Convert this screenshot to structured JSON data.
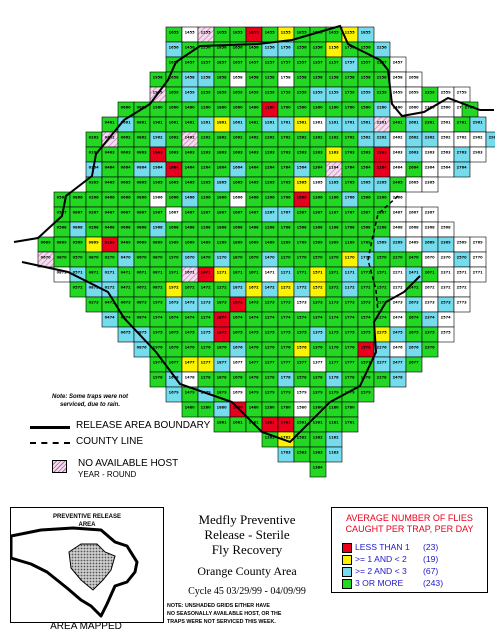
{
  "map": {
    "cell_rows": [
      {
        "y": 27,
        "x0": 166,
        "n": 2,
        "ids": [
          "1655",
          "1455"
        ]
      },
      {
        "y": 27,
        "x0": 198,
        "n": 9,
        "ids": [
          "1255",
          "1055",
          "1855",
          "1655",
          "1455",
          "1255",
          "1855",
          "1655",
          "1455"
        ]
      },
      {
        "y": 27,
        "x0": 342,
        "n": 2,
        "ids": [
          "1255",
          "1855"
        ]
      },
      {
        "y": 42,
        "x0": 166,
        "n": 14,
        "ids": [
          "1656",
          "1456",
          "1256",
          "1856",
          "1656",
          "1456",
          "1256",
          "1756",
          "1556",
          "1356",
          "1156",
          "1756",
          "1556",
          "2256"
        ]
      },
      {
        "y": 57,
        "x0": 166,
        "n": 15,
        "ids": [
          "1657",
          "1457",
          "1257",
          "1857",
          "1657",
          "1457",
          "1257",
          "1757",
          "1557",
          "1357",
          "1157",
          "1757",
          "1557",
          "2257",
          "2457"
        ]
      },
      {
        "y": 72,
        "x0": 150,
        "n": 17,
        "ids": [
          "1958",
          "1658",
          "1458",
          "1258",
          "1858",
          "1658",
          "1458",
          "1258",
          "1758",
          "1558",
          "1358",
          "1158",
          "1758",
          "1558",
          "2258",
          "2458",
          "2658"
        ]
      },
      {
        "y": 87,
        "x0": 150,
        "n": 20,
        "ids": [
          "1959",
          "1659",
          "1459",
          "1259",
          "1859",
          "1659",
          "1459",
          "1259",
          "1759",
          "1559",
          "1359",
          "1159",
          "1759",
          "1559",
          "2259",
          "2459",
          "2659",
          "2359",
          "2559",
          "2759"
        ]
      },
      {
        "y": 102,
        "x0": 118,
        "n": 22,
        "ids": [
          "0660",
          "0860",
          "1960",
          "1660",
          "1460",
          "1260",
          "1860",
          "1660",
          "1460",
          "1260",
          "1760",
          "1560",
          "1360",
          "1160",
          "1760",
          "1560",
          "2260",
          "2460",
          "2660",
          "2360",
          "2560",
          "2760"
        ]
      },
      {
        "y": 102,
        "x0": 462,
        "n": 1,
        "ids": [
          "2760"
        ]
      },
      {
        "y": 117,
        "x0": 102,
        "n": 24,
        "ids": [
          "0461",
          "0661",
          "0861",
          "1961",
          "1661",
          "1461",
          "1261",
          "1861",
          "1661",
          "1461",
          "1261",
          "1761",
          "1561",
          "1361",
          "1161",
          "1761",
          "1561",
          "2261",
          "2461",
          "2661",
          "2361",
          "2561",
          "2761",
          "2961"
        ]
      },
      {
        "y": 132,
        "x0": 86,
        "n": 25,
        "ids": [
          "0262",
          "0462",
          "0662",
          "0862",
          "1962",
          "1662",
          "1462",
          "1262",
          "1862",
          "1662",
          "1462",
          "1262",
          "1762",
          "1562",
          "1362",
          "1162",
          "1762",
          "1562",
          "2262",
          "2462",
          "2662",
          "2362",
          "2562",
          "2762",
          "2962"
        ]
      },
      {
        "y": 132,
        "x0": 486,
        "n": 1,
        "ids": [
          "2962"
        ]
      },
      {
        "y": 147,
        "x0": 86,
        "n": 25,
        "ids": [
          "0263",
          "0463",
          "0663",
          "0863",
          "1963",
          "1663",
          "1463",
          "1263",
          "1863",
          "1663",
          "1463",
          "1263",
          "1763",
          "1563",
          "1363",
          "1163",
          "1763",
          "1563",
          "2263",
          "2463",
          "2663",
          "2363",
          "2563",
          "2763",
          "2963"
        ]
      },
      {
        "y": 162,
        "x0": 86,
        "n": 24,
        "ids": [
          "0264",
          "0464",
          "0664",
          "0864",
          "1964",
          "1664",
          "1464",
          "1264",
          "1864",
          "1664",
          "1464",
          "1264",
          "1764",
          "1564",
          "1364",
          "1164",
          "1764",
          "1564",
          "2264",
          "2464",
          "2664",
          "2364",
          "2564",
          "2764"
        ]
      },
      {
        "y": 177,
        "x0": 86,
        "n": 22,
        "ids": [
          "0265",
          "0465",
          "0665",
          "0865",
          "1965",
          "1665",
          "1465",
          "1265",
          "1865",
          "1665",
          "1465",
          "1265",
          "1765",
          "1565",
          "1365",
          "1165",
          "1765",
          "1565",
          "2265",
          "2465",
          "2665",
          "2365"
        ]
      },
      {
        "y": 192,
        "x0": 54,
        "n": 22,
        "ids": [
          "0566",
          "0866",
          "0266",
          "0466",
          "0666",
          "0866",
          "1966",
          "1666",
          "1466",
          "1266",
          "1866",
          "1666",
          "1466",
          "1266",
          "1766",
          "1566",
          "1366",
          "1166",
          "1766",
          "1566",
          "2266",
          "2466"
        ]
      },
      {
        "y": 207,
        "x0": 54,
        "n": 24,
        "ids": [
          "0567",
          "0867",
          "0267",
          "0467",
          "0667",
          "0867",
          "1967",
          "1667",
          "1467",
          "1267",
          "1867",
          "1667",
          "1467",
          "1267",
          "1767",
          "1567",
          "1367",
          "1167",
          "1767",
          "1567",
          "2267",
          "2467",
          "2667",
          "2367"
        ]
      },
      {
        "y": 222,
        "x0": 54,
        "n": 25,
        "ids": [
          "0568",
          "0868",
          "0268",
          "0468",
          "0668",
          "0868",
          "1968",
          "1668",
          "1468",
          "1268",
          "1868",
          "1668",
          "1468",
          "1268",
          "1768",
          "1568",
          "1368",
          "1168",
          "1768",
          "1568",
          "2268",
          "2468",
          "2668",
          "2368",
          "2568"
        ]
      },
      {
        "y": 237,
        "x0": 38,
        "n": 28,
        "ids": [
          "0669",
          "0869",
          "0569",
          "0869",
          "0269",
          "0469",
          "0669",
          "0869",
          "1969",
          "1669",
          "1469",
          "1269",
          "1869",
          "1669",
          "1469",
          "1269",
          "1769",
          "1569",
          "1369",
          "1169",
          "1769",
          "1569",
          "2269",
          "2469",
          "2669",
          "2369",
          "2569",
          "2769"
        ]
      },
      {
        "y": 252,
        "x0": 38,
        "n": 28,
        "ids": [
          "0670",
          "0870",
          "0570",
          "0870",
          "0270",
          "0470",
          "0670",
          "0870",
          "1970",
          "1670",
          "1470",
          "1270",
          "1870",
          "1670",
          "1470",
          "1270",
          "1770",
          "1570",
          "1370",
          "1170",
          "1770",
          "1570",
          "2270",
          "2470",
          "2670",
          "2370",
          "2570",
          "2770"
        ]
      },
      {
        "y": 267,
        "x0": 54,
        "n": 27,
        "ids": [
          "0871",
          "0571",
          "0871",
          "0271",
          "0471",
          "0671",
          "0871",
          "1971",
          "1671",
          "1471",
          "1271",
          "1871",
          "1671",
          "1471",
          "1271",
          "1771",
          "1571",
          "1371",
          "1171",
          "1771",
          "1571",
          "2271",
          "2471",
          "2671",
          "2371",
          "2571",
          "2771"
        ]
      },
      {
        "y": 282,
        "x0": 70,
        "n": 25,
        "ids": [
          "0572",
          "0872",
          "0272",
          "0472",
          "0672",
          "0872",
          "1972",
          "1672",
          "1472",
          "1272",
          "1872",
          "1672",
          "1472",
          "1272",
          "1772",
          "1572",
          "1372",
          "1172",
          "1772",
          "1572",
          "2272",
          "2472",
          "2672",
          "2372",
          "2572"
        ]
      },
      {
        "y": 297,
        "x0": 86,
        "n": 24,
        "ids": [
          "0273",
          "0473",
          "0673",
          "0873",
          "1973",
          "1673",
          "1473",
          "1273",
          "1873",
          "1673",
          "1473",
          "1273",
          "1773",
          "1573",
          "1373",
          "1173",
          "1773",
          "1573",
          "2273",
          "2473",
          "2673",
          "2373",
          "2573",
          "2773"
        ]
      },
      {
        "y": 312,
        "x0": 102,
        "n": 22,
        "ids": [
          "0474",
          "0674",
          "0874",
          "1974",
          "1674",
          "1474",
          "1274",
          "1874",
          "1674",
          "1474",
          "1274",
          "1774",
          "1574",
          "1374",
          "1174",
          "1774",
          "1574",
          "2274",
          "2474",
          "2674",
          "2374",
          "2574"
        ]
      },
      {
        "y": 327,
        "x0": 118,
        "n": 21,
        "ids": [
          "0675",
          "0875",
          "1975",
          "1675",
          "1475",
          "1275",
          "1875",
          "1675",
          "1475",
          "1275",
          "1775",
          "1575",
          "1375",
          "1175",
          "1775",
          "1575",
          "2275",
          "2475",
          "2675",
          "2375",
          "2575"
        ]
      },
      {
        "y": 342,
        "x0": 134,
        "n": 19,
        "ids": [
          "0876",
          "1976",
          "1676",
          "1476",
          "1276",
          "1876",
          "1676",
          "1476",
          "1276",
          "1776",
          "1576",
          "1376",
          "1176",
          "1776",
          "1576",
          "2276",
          "2476",
          "2676",
          "2376"
        ]
      },
      {
        "y": 357,
        "x0": 150,
        "n": 17,
        "ids": [
          "1977",
          "1677",
          "1477",
          "1277",
          "1877",
          "1677",
          "1477",
          "1277",
          "1777",
          "1577",
          "1377",
          "1177",
          "1777",
          "1577",
          "2277",
          "2477",
          "2677"
        ]
      },
      {
        "y": 372,
        "x0": 150,
        "n": 16,
        "ids": [
          "1978",
          "1678",
          "1478",
          "1278",
          "1878",
          "1678",
          "1478",
          "1278",
          "1778",
          "1578",
          "1378",
          "1178",
          "1778",
          "1578",
          "2278",
          "2478"
        ]
      },
      {
        "y": 387,
        "x0": 166,
        "n": 13,
        "ids": [
          "1679",
          "1479",
          "1279",
          "1879",
          "1679",
          "1479",
          "1279",
          "1779",
          "1579",
          "1379",
          "1179",
          "1779",
          "1579"
        ]
      },
      {
        "y": 402,
        "x0": 182,
        "n": 11,
        "ids": [
          "1480",
          "1280",
          "1880",
          "1680",
          "1480",
          "1280",
          "1780",
          "1580",
          "1380",
          "1180",
          "1780"
        ]
      },
      {
        "y": 417,
        "x0": 214,
        "n": 9,
        "ids": [
          "1881",
          "1681",
          "1481",
          "1281",
          "1781",
          "1581",
          "1381",
          "1181",
          "1781"
        ]
      },
      {
        "y": 432,
        "x0": 262,
        "n": 5,
        "ids": [
          "1282",
          "1782",
          "1582",
          "1382",
          "1182"
        ]
      },
      {
        "y": 447,
        "x0": 278,
        "n": 4,
        "ids": [
          "1783",
          "1583",
          "1383",
          "1183"
        ]
      },
      {
        "y": 462,
        "x0": 310,
        "n": 1,
        "ids": [
          "1384"
        ]
      }
    ],
    "note_lines": [
      "Note: Some traps were not",
      "serviced, due to rain."
    ]
  },
  "legend": {
    "release_area_boundary": "RELEASE AREA BOUNDARY",
    "county_line": "COUNTY LINE",
    "no_available_host": "NO AVAILABLE HOST",
    "year_round": "YEAR - ROUND"
  },
  "inset": {
    "title_line1": "PREVENTIVE RELEASE",
    "title_line2": "AREA",
    "caption": "AREA MAPPED"
  },
  "title": {
    "line1": "Medfly Preventive",
    "line2": "Release - Sterile",
    "line3": "Fly Recovery",
    "county": "Orange County Area",
    "cycle": "Cycle 45   03/29/99 - 04/09/99"
  },
  "footnote": {
    "line1": "NOTE: UNSHADED GRIDS EITHER HAVE",
    "line2": "NO SEASONALLY AVAILABLE HOST, OR THE",
    "line3": "TRAPS WERE NOT SERVICED THIS WEEK."
  },
  "count_legend": {
    "title_line1": "AVERAGE NUMBER OF FLIES",
    "title_line2": "CAUGHT PER TRAP, PER DAY",
    "items": [
      {
        "label": "LESS THAN 1",
        "count": "(23)",
        "color": "#e8001c"
      },
      {
        "label": ">= 1 AND < 2",
        "count": "(19)",
        "color": "#fbf300"
      },
      {
        "label": ">= 2 AND < 3",
        "count": "(67)",
        "color": "#74dcec"
      },
      {
        "label": "3 OR MORE",
        "count": "(243)",
        "color": "#22d822"
      }
    ]
  },
  "colors": {
    "green": "#22d822",
    "cyan": "#74dcec",
    "yellow": "#fbf300",
    "red": "#e8001c",
    "white": "#ffffff",
    "host_pattern": "#c77fb8"
  }
}
